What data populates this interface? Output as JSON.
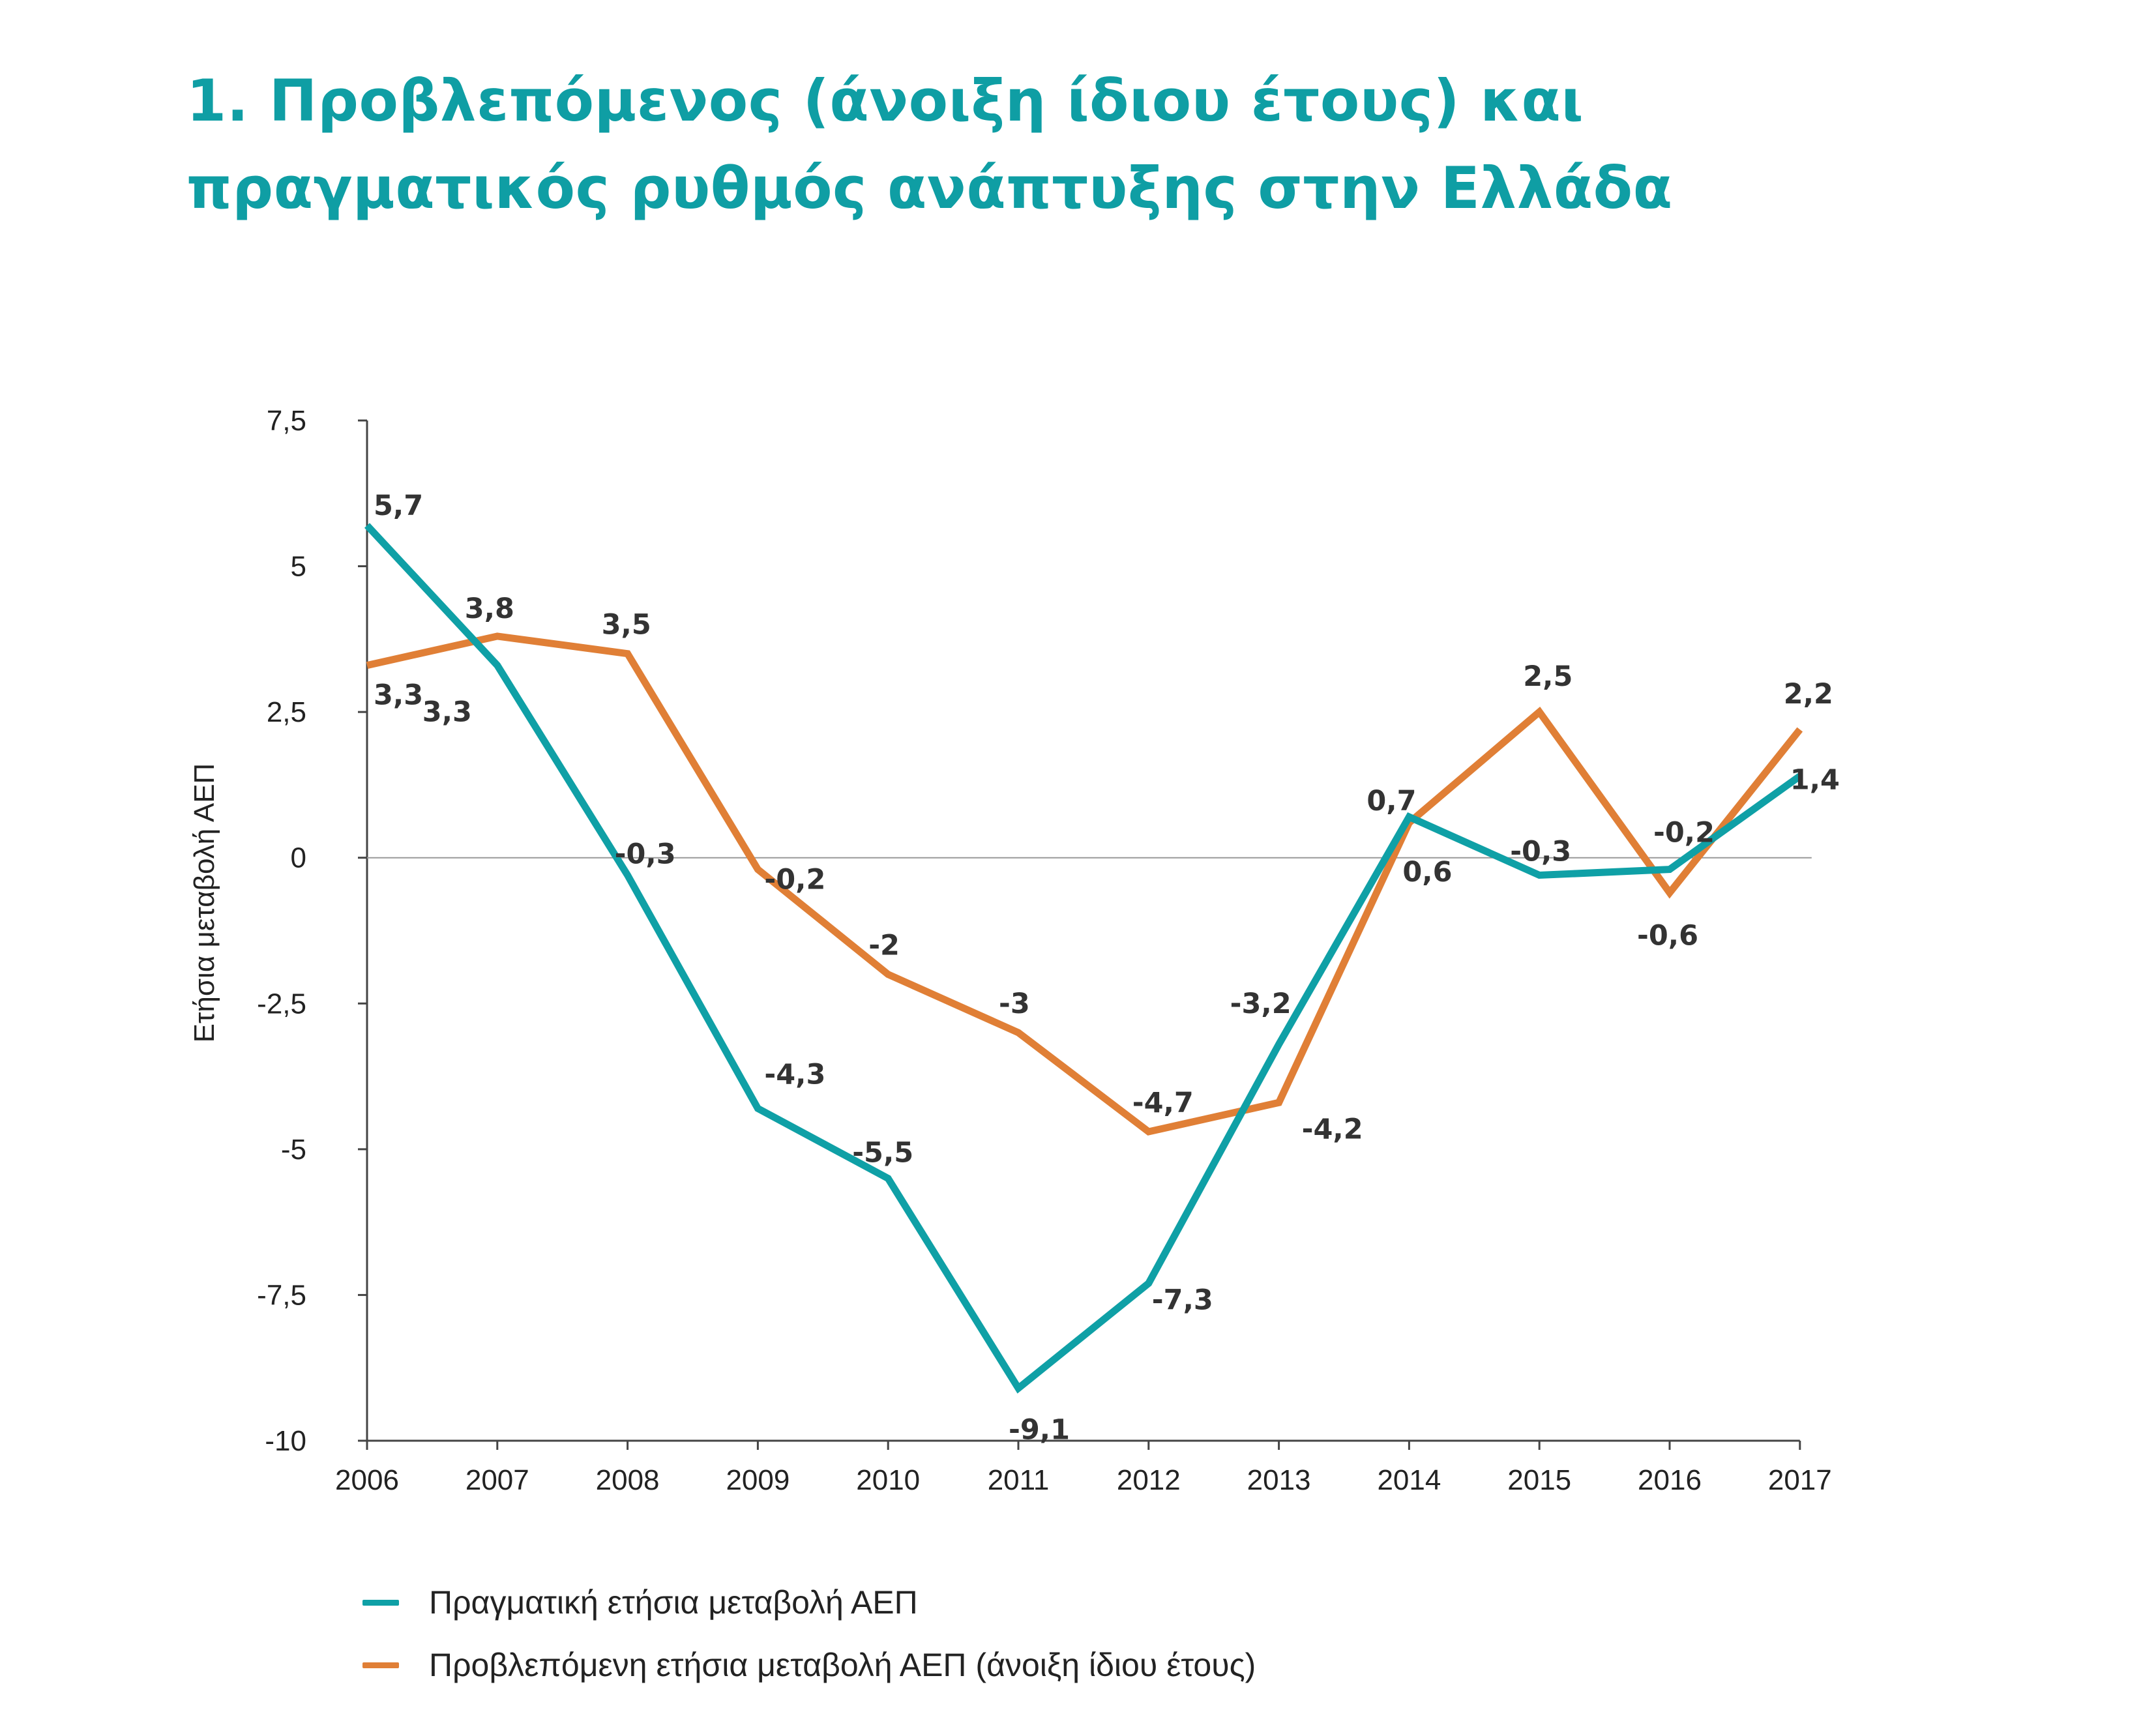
{
  "title": {
    "line1": "1. Προβλεπόμενος (άνοιξη ίδιου έτους) και",
    "line2": "πραγματικός ρυθμός ανάπτυξης στην Ελλάδα"
  },
  "colors": {
    "actual": "#0fa0a6",
    "forecast": "#e07f36",
    "zero_line": "#999999",
    "axis": "#444444"
  },
  "chart_data": {
    "type": "line",
    "title": "1. Προβλεπόμενος (άνοιξη ίδιου έτους) και πραγματικός ρυθμός ανάπτυξης στην Ελλάδα",
    "xlabel": "",
    "ylabel": "Ετήσια μεταβολή ΑΕΠ",
    "categories": [
      "2006",
      "2007",
      "2008",
      "2009",
      "2010",
      "2011",
      "2012",
      "2013",
      "2014",
      "2015",
      "2016",
      "2017"
    ],
    "ylim": [
      -10,
      7.5
    ],
    "yticks": [
      7.5,
      5,
      2.5,
      0,
      -2.5,
      -5,
      -7.5,
      -10
    ],
    "ytick_labels": [
      "7,5",
      "5",
      "2,5",
      "0",
      "-2,5",
      "-5",
      "-7,5",
      "-10"
    ],
    "grid": false,
    "legend_position": "bottom-left",
    "series": [
      {
        "name": "Πραγματική ετήσια μεταβολή ΑΕΠ",
        "key": "actual",
        "values": [
          5.7,
          3.3,
          -0.3,
          -4.3,
          -5.5,
          -9.1,
          -7.3,
          -3.2,
          0.7,
          -0.3,
          -0.2,
          1.4
        ],
        "labels": [
          "5,7",
          "3,3",
          "-0,3",
          "-4,3",
          "-5,5",
          "-9,1",
          "-7,3",
          "-3,2",
          "0,7",
          "-0,3",
          "-0,2",
          "1,4"
        ]
      },
      {
        "name": "Προβλεπόμενη ετήσια μεταβολή ΑΕΠ (άνοιξη ίδιου έτους)",
        "key": "forecast",
        "values": [
          3.3,
          3.8,
          3.5,
          -0.2,
          -2,
          -3,
          -4.7,
          -4.2,
          0.6,
          2.5,
          -0.6,
          2.2
        ],
        "labels": [
          "3,3",
          "3,8",
          "3,5",
          "-0,2",
          "-2",
          "-3",
          "-4,7",
          "-4,2",
          "0,6",
          "2,5",
          "-0,6",
          "2,2"
        ]
      }
    ]
  }
}
